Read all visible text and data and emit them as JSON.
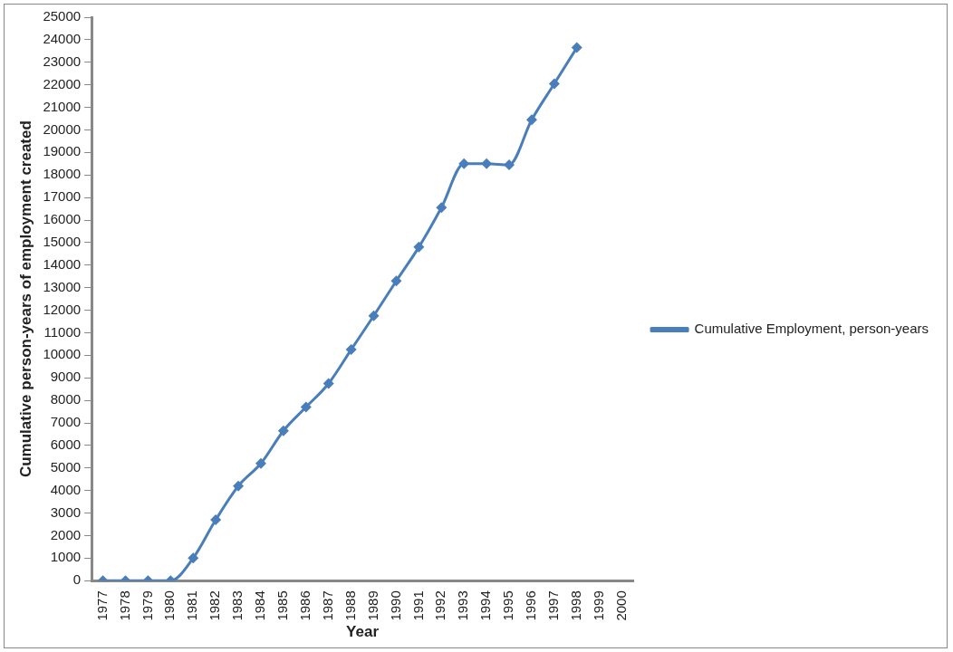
{
  "chart_data": {
    "type": "line",
    "xlabel": "Year",
    "ylabel": "Cumulative person-years of employment created",
    "categories": [
      "1977",
      "1978",
      "1979",
      "1980",
      "1981",
      "1982",
      "1983",
      "1984",
      "1985",
      "1986",
      "1987",
      "1988",
      "1989",
      "1990",
      "1991",
      "1992",
      "1993",
      "1994",
      "1995",
      "1996",
      "1997",
      "1998",
      "1999",
      "2000"
    ],
    "series": [
      {
        "name": "Cumulative Employment, person-years",
        "color": "#4a7ebb",
        "values": [
          0,
          0,
          0,
          0,
          1000,
          2700,
          4200,
          5200,
          6650,
          7700,
          8750,
          10250,
          11750,
          13300,
          14800,
          16550,
          18500,
          18500,
          18450,
          20450,
          22050,
          23650,
          null,
          null
        ]
      }
    ],
    "ylim": [
      0,
      25000
    ],
    "yticks": [
      0,
      1000,
      2000,
      3000,
      4000,
      5000,
      6000,
      7000,
      8000,
      9000,
      10000,
      11000,
      12000,
      13000,
      14000,
      15000,
      16000,
      17000,
      18000,
      19000,
      20000,
      21000,
      22000,
      23000,
      24000,
      25000
    ],
    "grid": false,
    "legend": "right",
    "marker": "diamond",
    "line_style": "solid"
  }
}
